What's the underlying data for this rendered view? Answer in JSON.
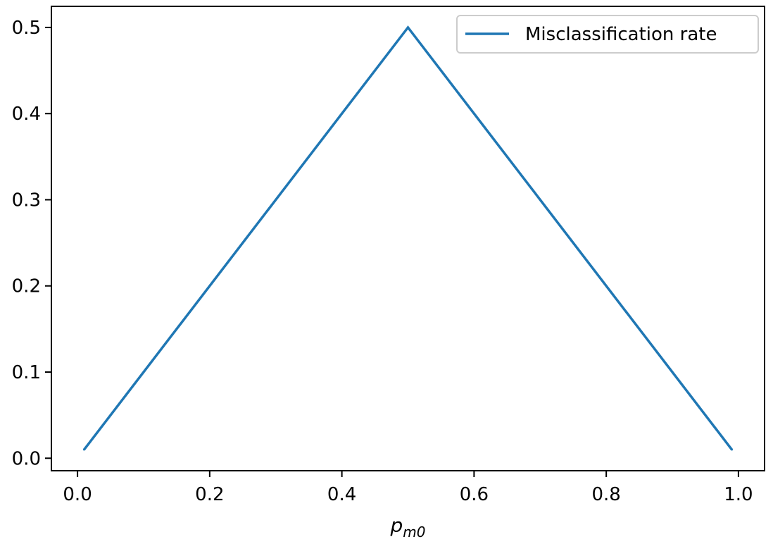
{
  "chart_data": {
    "type": "line",
    "title": "",
    "xlabel": {
      "base": "p",
      "sub": "m0"
    },
    "ylabel": "",
    "xlim": [
      -0.0395,
      1.0395
    ],
    "ylim": [
      -0.0145,
      0.5245
    ],
    "xticks": [
      0.0,
      0.2,
      0.4,
      0.6,
      0.8,
      1.0
    ],
    "xtick_labels": [
      "0.0",
      "0.2",
      "0.4",
      "0.6",
      "0.8",
      "1.0"
    ],
    "yticks": [
      0.0,
      0.1,
      0.2,
      0.3,
      0.4,
      0.5
    ],
    "ytick_labels": [
      "0.0",
      "0.1",
      "0.2",
      "0.3",
      "0.4",
      "0.5"
    ],
    "grid": false,
    "legend": {
      "position": "top-right",
      "entries": [
        "Misclassification rate"
      ]
    },
    "series": [
      {
        "name": "Misclassification rate",
        "color": "#1f77b4",
        "x": [
          0.01,
          0.5,
          0.99
        ],
        "y": [
          0.01,
          0.5,
          0.01
        ]
      }
    ]
  }
}
